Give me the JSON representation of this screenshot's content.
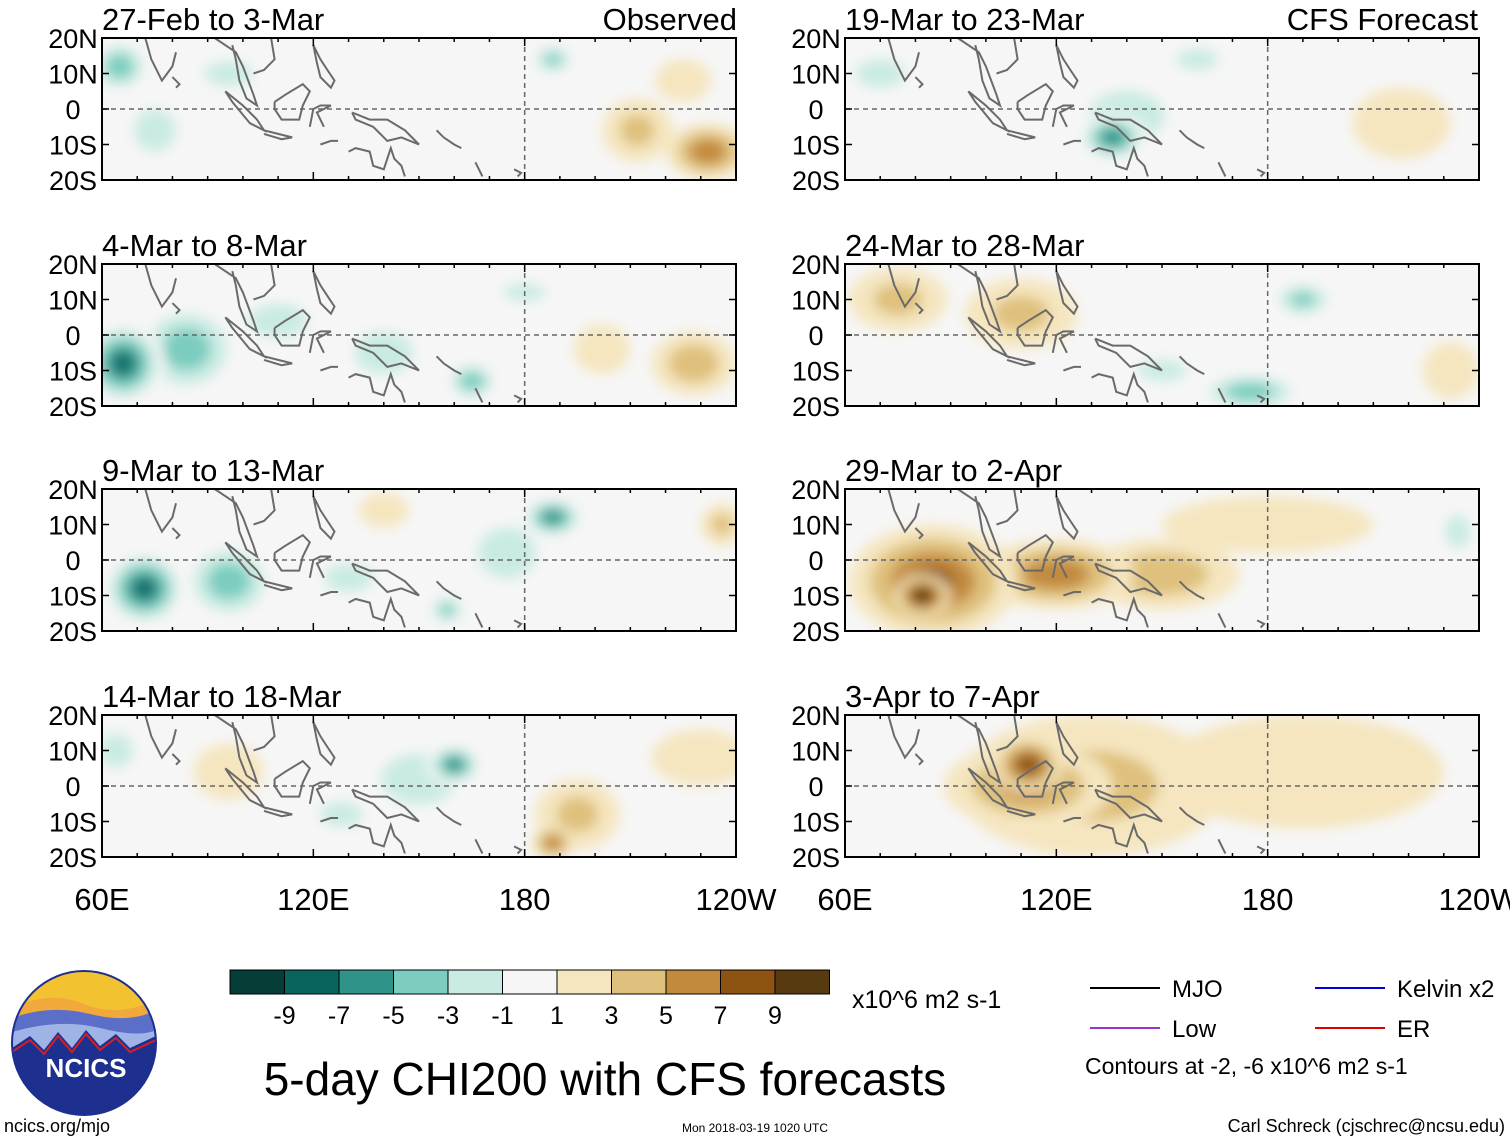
{
  "title": "5-day CHI200 with CFS forecasts",
  "labels": {
    "observed": "Observed",
    "forecast": "CFS Forecast",
    "units": "x10^6 m2 s-1",
    "contour_note": "Contours at -2, -6 x10^6 m2 s-1",
    "website": "ncics.org/mjo",
    "timestamp": "Mon 2018-03-19 1020 UTC",
    "author": "Carl Schreck (cjschrec@ncsu.edu)",
    "logo_text": "NCICS"
  },
  "legend": [
    {
      "name": "MJO",
      "color": "#000000"
    },
    {
      "name": "Kelvin x2",
      "color": "#0000dd"
    },
    {
      "name": "Low",
      "color": "#9933cc"
    },
    {
      "name": "ER",
      "color": "#dd0000"
    }
  ],
  "colorbar": {
    "ticks": [
      "-9",
      "-7",
      "-5",
      "-3",
      "-1",
      "1",
      "3",
      "5",
      "7",
      "9"
    ],
    "colors": [
      "#053d37",
      "#08655e",
      "#2f938a",
      "#7ccdc0",
      "#c9ebe3",
      "#f6f6f6",
      "#f5e6c0",
      "#dfc17d",
      "#c28a3c",
      "#8e5313",
      "#583a11"
    ]
  },
  "chart_data": {
    "type": "heatmap",
    "variable": "CHI200 anomaly",
    "units": "x10^6 m2 s-1",
    "xaxis": {
      "ticks": [
        "60E",
        "120E",
        "180",
        "120W"
      ],
      "range": [
        "60E",
        "120W"
      ]
    },
    "yaxis": {
      "ticks": [
        "20N",
        "10N",
        "0",
        "10S",
        "20S"
      ],
      "range": [
        "20S",
        "20N"
      ]
    },
    "panels": [
      {
        "period": "27-Feb to 3-Mar",
        "kind": "observed",
        "anomalies": [
          {
            "lon": 65,
            "lat": 12,
            "rx": 9,
            "ry": 8,
            "v": -6
          },
          {
            "lon": 75,
            "lat": -6,
            "rx": 10,
            "ry": 10,
            "v": -4
          },
          {
            "lon": 96,
            "lat": 10,
            "rx": 14,
            "ry": 7,
            "v": -3
          },
          {
            "lon": 125,
            "lat": 4,
            "rx": 18,
            "ry": 7,
            "v": -2
          },
          {
            "lon": 188,
            "lat": 14,
            "rx": 7,
            "ry": 5,
            "v": -5
          },
          {
            "lon": 150,
            "lat": -10,
            "rx": 8,
            "ry": 5,
            "v": -2
          },
          {
            "lon": 232,
            "lat": -12,
            "rx": 12,
            "ry": 8,
            "v": 6
          },
          {
            "lon": 212,
            "lat": -6,
            "rx": 10,
            "ry": 9,
            "v": 3
          },
          {
            "lon": 225,
            "lat": 8,
            "rx": 8,
            "ry": 6,
            "v": 2
          }
        ]
      },
      {
        "period": "4-Mar to 8-Mar",
        "kind": "observed",
        "anomalies": [
          {
            "lon": 66,
            "lat": -8,
            "rx": 12,
            "ry": 12,
            "v": -9
          },
          {
            "lon": 84,
            "lat": -4,
            "rx": 16,
            "ry": 14,
            "v": -6
          },
          {
            "lon": 110,
            "lat": 4,
            "rx": 14,
            "ry": 8,
            "v": -4
          },
          {
            "lon": 140,
            "lat": -5,
            "rx": 14,
            "ry": 10,
            "v": -4
          },
          {
            "lon": 165,
            "lat": -13,
            "rx": 8,
            "ry": 6,
            "v": -6
          },
          {
            "lon": 180,
            "lat": 12,
            "rx": 12,
            "ry": 5,
            "v": -3
          },
          {
            "lon": 228,
            "lat": -8,
            "rx": 12,
            "ry": 9,
            "v": 4
          },
          {
            "lon": 202,
            "lat": -4,
            "rx": 8,
            "ry": 7,
            "v": 2
          }
        ]
      },
      {
        "period": "9-Mar to 13-Mar",
        "kind": "observed",
        "anomalies": [
          {
            "lon": 72,
            "lat": -8,
            "rx": 12,
            "ry": 11,
            "v": -9
          },
          {
            "lon": 96,
            "lat": -6,
            "rx": 14,
            "ry": 12,
            "v": -6
          },
          {
            "lon": 130,
            "lat": -5,
            "rx": 14,
            "ry": 8,
            "v": -3
          },
          {
            "lon": 188,
            "lat": 12,
            "rx": 9,
            "ry": 6,
            "v": -8
          },
          {
            "lon": 175,
            "lat": 2,
            "rx": 14,
            "ry": 12,
            "v": -4
          },
          {
            "lon": 158,
            "lat": -14,
            "rx": 6,
            "ry": 5,
            "v": -5
          },
          {
            "lon": 236,
            "lat": 10,
            "rx": 6,
            "ry": 6,
            "v": 3
          },
          {
            "lon": 140,
            "lat": 14,
            "rx": 7,
            "ry": 5,
            "v": 2
          }
        ]
      },
      {
        "period": "14-Mar to 18-Mar",
        "kind": "observed",
        "anomalies": [
          {
            "lon": 64,
            "lat": 10,
            "rx": 8,
            "ry": 8,
            "v": -4
          },
          {
            "lon": 160,
            "lat": 6,
            "rx": 8,
            "ry": 6,
            "v": -8
          },
          {
            "lon": 150,
            "lat": 2,
            "rx": 18,
            "ry": 12,
            "v": -4
          },
          {
            "lon": 128,
            "lat": -8,
            "rx": 10,
            "ry": 6,
            "v": -4
          },
          {
            "lon": 112,
            "lat": 6,
            "rx": 14,
            "ry": 9,
            "v": -2
          },
          {
            "lon": 188,
            "lat": -16,
            "rx": 6,
            "ry": 5,
            "v": 6
          },
          {
            "lon": 195,
            "lat": -8,
            "rx": 12,
            "ry": 10,
            "v": 3
          },
          {
            "lon": 96,
            "lat": 4,
            "rx": 10,
            "ry": 8,
            "v": 2
          },
          {
            "lon": 230,
            "lat": 8,
            "rx": 14,
            "ry": 8,
            "v": 2
          }
        ]
      },
      {
        "period": "19-Mar to 23-Mar",
        "kind": "forecast",
        "anomalies": [
          {
            "lon": 70,
            "lat": 10,
            "rx": 14,
            "ry": 8,
            "v": -3
          },
          {
            "lon": 136,
            "lat": -8,
            "rx": 10,
            "ry": 7,
            "v": -8
          },
          {
            "lon": 140,
            "lat": -2,
            "rx": 18,
            "ry": 12,
            "v": -4
          },
          {
            "lon": 160,
            "lat": 14,
            "rx": 12,
            "ry": 6,
            "v": -3
          },
          {
            "lon": 100,
            "lat": -6,
            "rx": 12,
            "ry": 8,
            "v": -2
          },
          {
            "lon": 218,
            "lat": -4,
            "rx": 14,
            "ry": 10,
            "v": 2
          }
        ]
      },
      {
        "period": "24-Mar to 28-Mar",
        "kind": "forecast",
        "anomalies": [
          {
            "lon": 75,
            "lat": 10,
            "rx": 14,
            "ry": 9,
            "v": 3
          },
          {
            "lon": 110,
            "lat": 6,
            "rx": 16,
            "ry": 10,
            "v": 3
          },
          {
            "lon": 190,
            "lat": 10,
            "rx": 10,
            "ry": 6,
            "v": -5
          },
          {
            "lon": 178,
            "lat": 4,
            "rx": 20,
            "ry": 10,
            "v": -2
          },
          {
            "lon": 175,
            "lat": -16,
            "rx": 16,
            "ry": 6,
            "v": -6
          },
          {
            "lon": 150,
            "lat": -10,
            "rx": 14,
            "ry": 6,
            "v": -3
          },
          {
            "lon": 232,
            "lat": -10,
            "rx": 8,
            "ry": 8,
            "v": 2
          }
        ]
      },
      {
        "period": "29-Mar to 2-Apr",
        "kind": "forecast",
        "anomalies": [
          {
            "lon": 85,
            "lat": -6,
            "rx": 24,
            "ry": 16,
            "v": 7
          },
          {
            "lon": 82,
            "lat": -10,
            "rx": 8,
            "ry": 6,
            "v": 10
          },
          {
            "lon": 120,
            "lat": -4,
            "rx": 22,
            "ry": 10,
            "v": 6
          },
          {
            "lon": 150,
            "lat": -4,
            "rx": 22,
            "ry": 10,
            "v": 4
          },
          {
            "lon": 180,
            "lat": 10,
            "rx": 30,
            "ry": 8,
            "v": 2
          },
          {
            "lon": 234,
            "lat": 8,
            "rx": 6,
            "ry": 8,
            "v": -4
          },
          {
            "lon": 218,
            "lat": 2,
            "rx": 8,
            "ry": 6,
            "v": -1
          }
        ]
      },
      {
        "period": "3-Apr to 7-Apr",
        "kind": "forecast",
        "anomalies": [
          {
            "lon": 112,
            "lat": 6,
            "rx": 10,
            "ry": 8,
            "v": 8
          },
          {
            "lon": 112,
            "lat": 0,
            "rx": 24,
            "ry": 12,
            "v": 5
          },
          {
            "lon": 130,
            "lat": 0,
            "rx": 38,
            "ry": 20,
            "v": 3
          },
          {
            "lon": 190,
            "lat": 4,
            "rx": 40,
            "ry": 16,
            "v": 2
          }
        ]
      }
    ]
  }
}
